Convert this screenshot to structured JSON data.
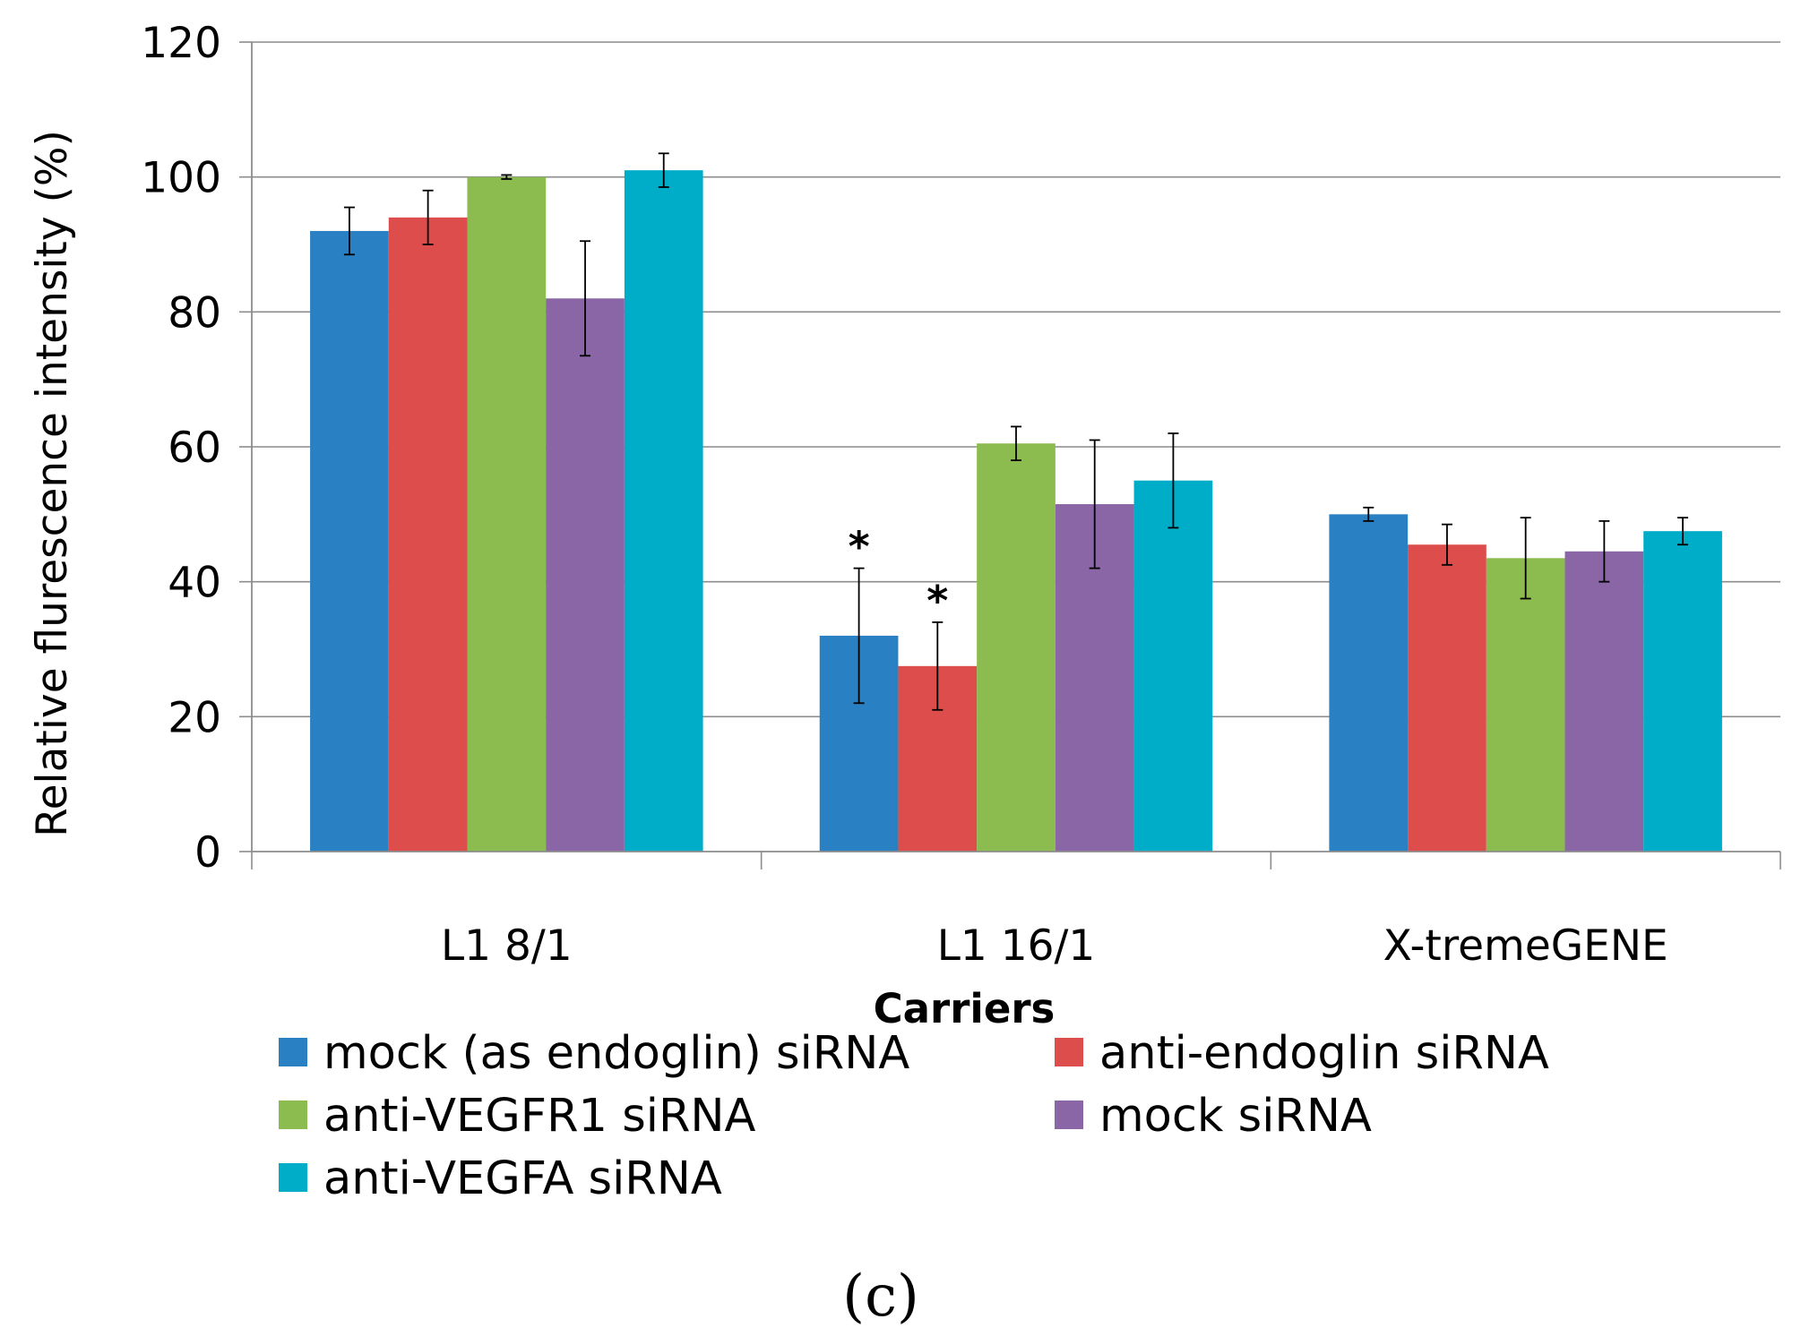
{
  "chart_data": {
    "type": "bar",
    "xlabel": "Carriers",
    "ylabel": "Relative flurescence intensity (%)",
    "ylim": [
      0,
      120
    ],
    "yticks": [
      0,
      20,
      40,
      60,
      80,
      100,
      120
    ],
    "grid": true,
    "legend_position": "bottom",
    "categories": [
      "L1 8/1",
      "L1 16/1",
      "X-tremeGENE"
    ],
    "series": [
      {
        "name": "mock (as endoglin) siRNA",
        "color": "#2980c2",
        "values": [
          92,
          32,
          50
        ],
        "errors": [
          3.5,
          10,
          1
        ]
      },
      {
        "name": "anti-endoglin siRNA",
        "color": "#dc4d4b",
        "values": [
          94,
          27.5,
          45.5
        ],
        "errors": [
          4,
          6.5,
          3
        ]
      },
      {
        "name": "anti-VEGFR1 siRNA",
        "color": "#8cbb4f",
        "values": [
          100,
          60.5,
          43.5
        ],
        "errors": [
          0.3,
          2.5,
          6
        ]
      },
      {
        "name": "mock siRNA",
        "color": "#8a66a6",
        "values": [
          82,
          51.5,
          44.5
        ],
        "errors": [
          8.5,
          9.5,
          4.5
        ]
      },
      {
        "name": "anti-VEGFA siRNA",
        "color": "#00adc9",
        "values": [
          101,
          55,
          47.5
        ],
        "errors": [
          2.5,
          7,
          2
        ]
      }
    ],
    "annotations": [
      {
        "text": "*",
        "category": "L1 16/1",
        "series": "mock (as endoglin) siRNA"
      },
      {
        "text": "*",
        "category": "L1 16/1",
        "series": "anti-endoglin siRNA"
      }
    ]
  },
  "panel_label": "(c)"
}
